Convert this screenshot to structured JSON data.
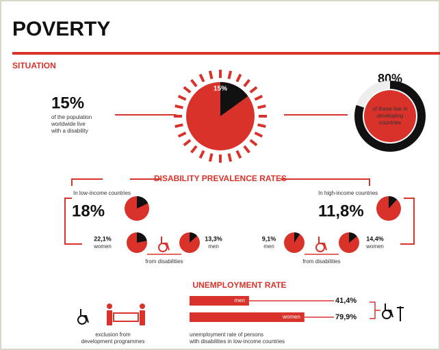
{
  "header": {
    "title": "POVERTY"
  },
  "situation": {
    "heading": "SITUATION",
    "world": {
      "value": 15,
      "label": "15%",
      "text": [
        "of the population",
        "worldwide live",
        "with a disability"
      ]
    },
    "developing": {
      "value": 80,
      "label": "80%",
      "text": [
        "of these live in",
        "developing",
        "countries"
      ]
    }
  },
  "prevalence": {
    "heading": "DISABILITY PREVALENCE RATES",
    "low": {
      "caption": "In low-income countries",
      "total": {
        "value": 18,
        "label": "18%"
      },
      "women": {
        "value": 22.1,
        "label": "22,1%",
        "name": "women"
      },
      "men": {
        "value": 13.3,
        "label": "13,3%",
        "name": "men"
      },
      "note": "from disabilities"
    },
    "high": {
      "caption": "In high-income countries",
      "total": {
        "value": 11.8,
        "label": "11,8%"
      },
      "men": {
        "value": 9.1,
        "label": "9,1%",
        "name": "men"
      },
      "women": {
        "value": 14.4,
        "label": "14,4%",
        "name": "women"
      },
      "note": "from disabilities"
    }
  },
  "unemployment": {
    "heading": "UNEMPLOYMENT RATE",
    "xlim": [
      0,
      100
    ],
    "bars": [
      {
        "name": "men",
        "value": 41.4,
        "label": "41,4%"
      },
      {
        "name": "women",
        "value": 79.9,
        "label": "79,9%"
      }
    ],
    "caption_left": [
      "exclusion from",
      "development programmes"
    ],
    "caption_right": [
      "unemployment rate of persons",
      "with disabilities in low-income countries"
    ]
  }
}
